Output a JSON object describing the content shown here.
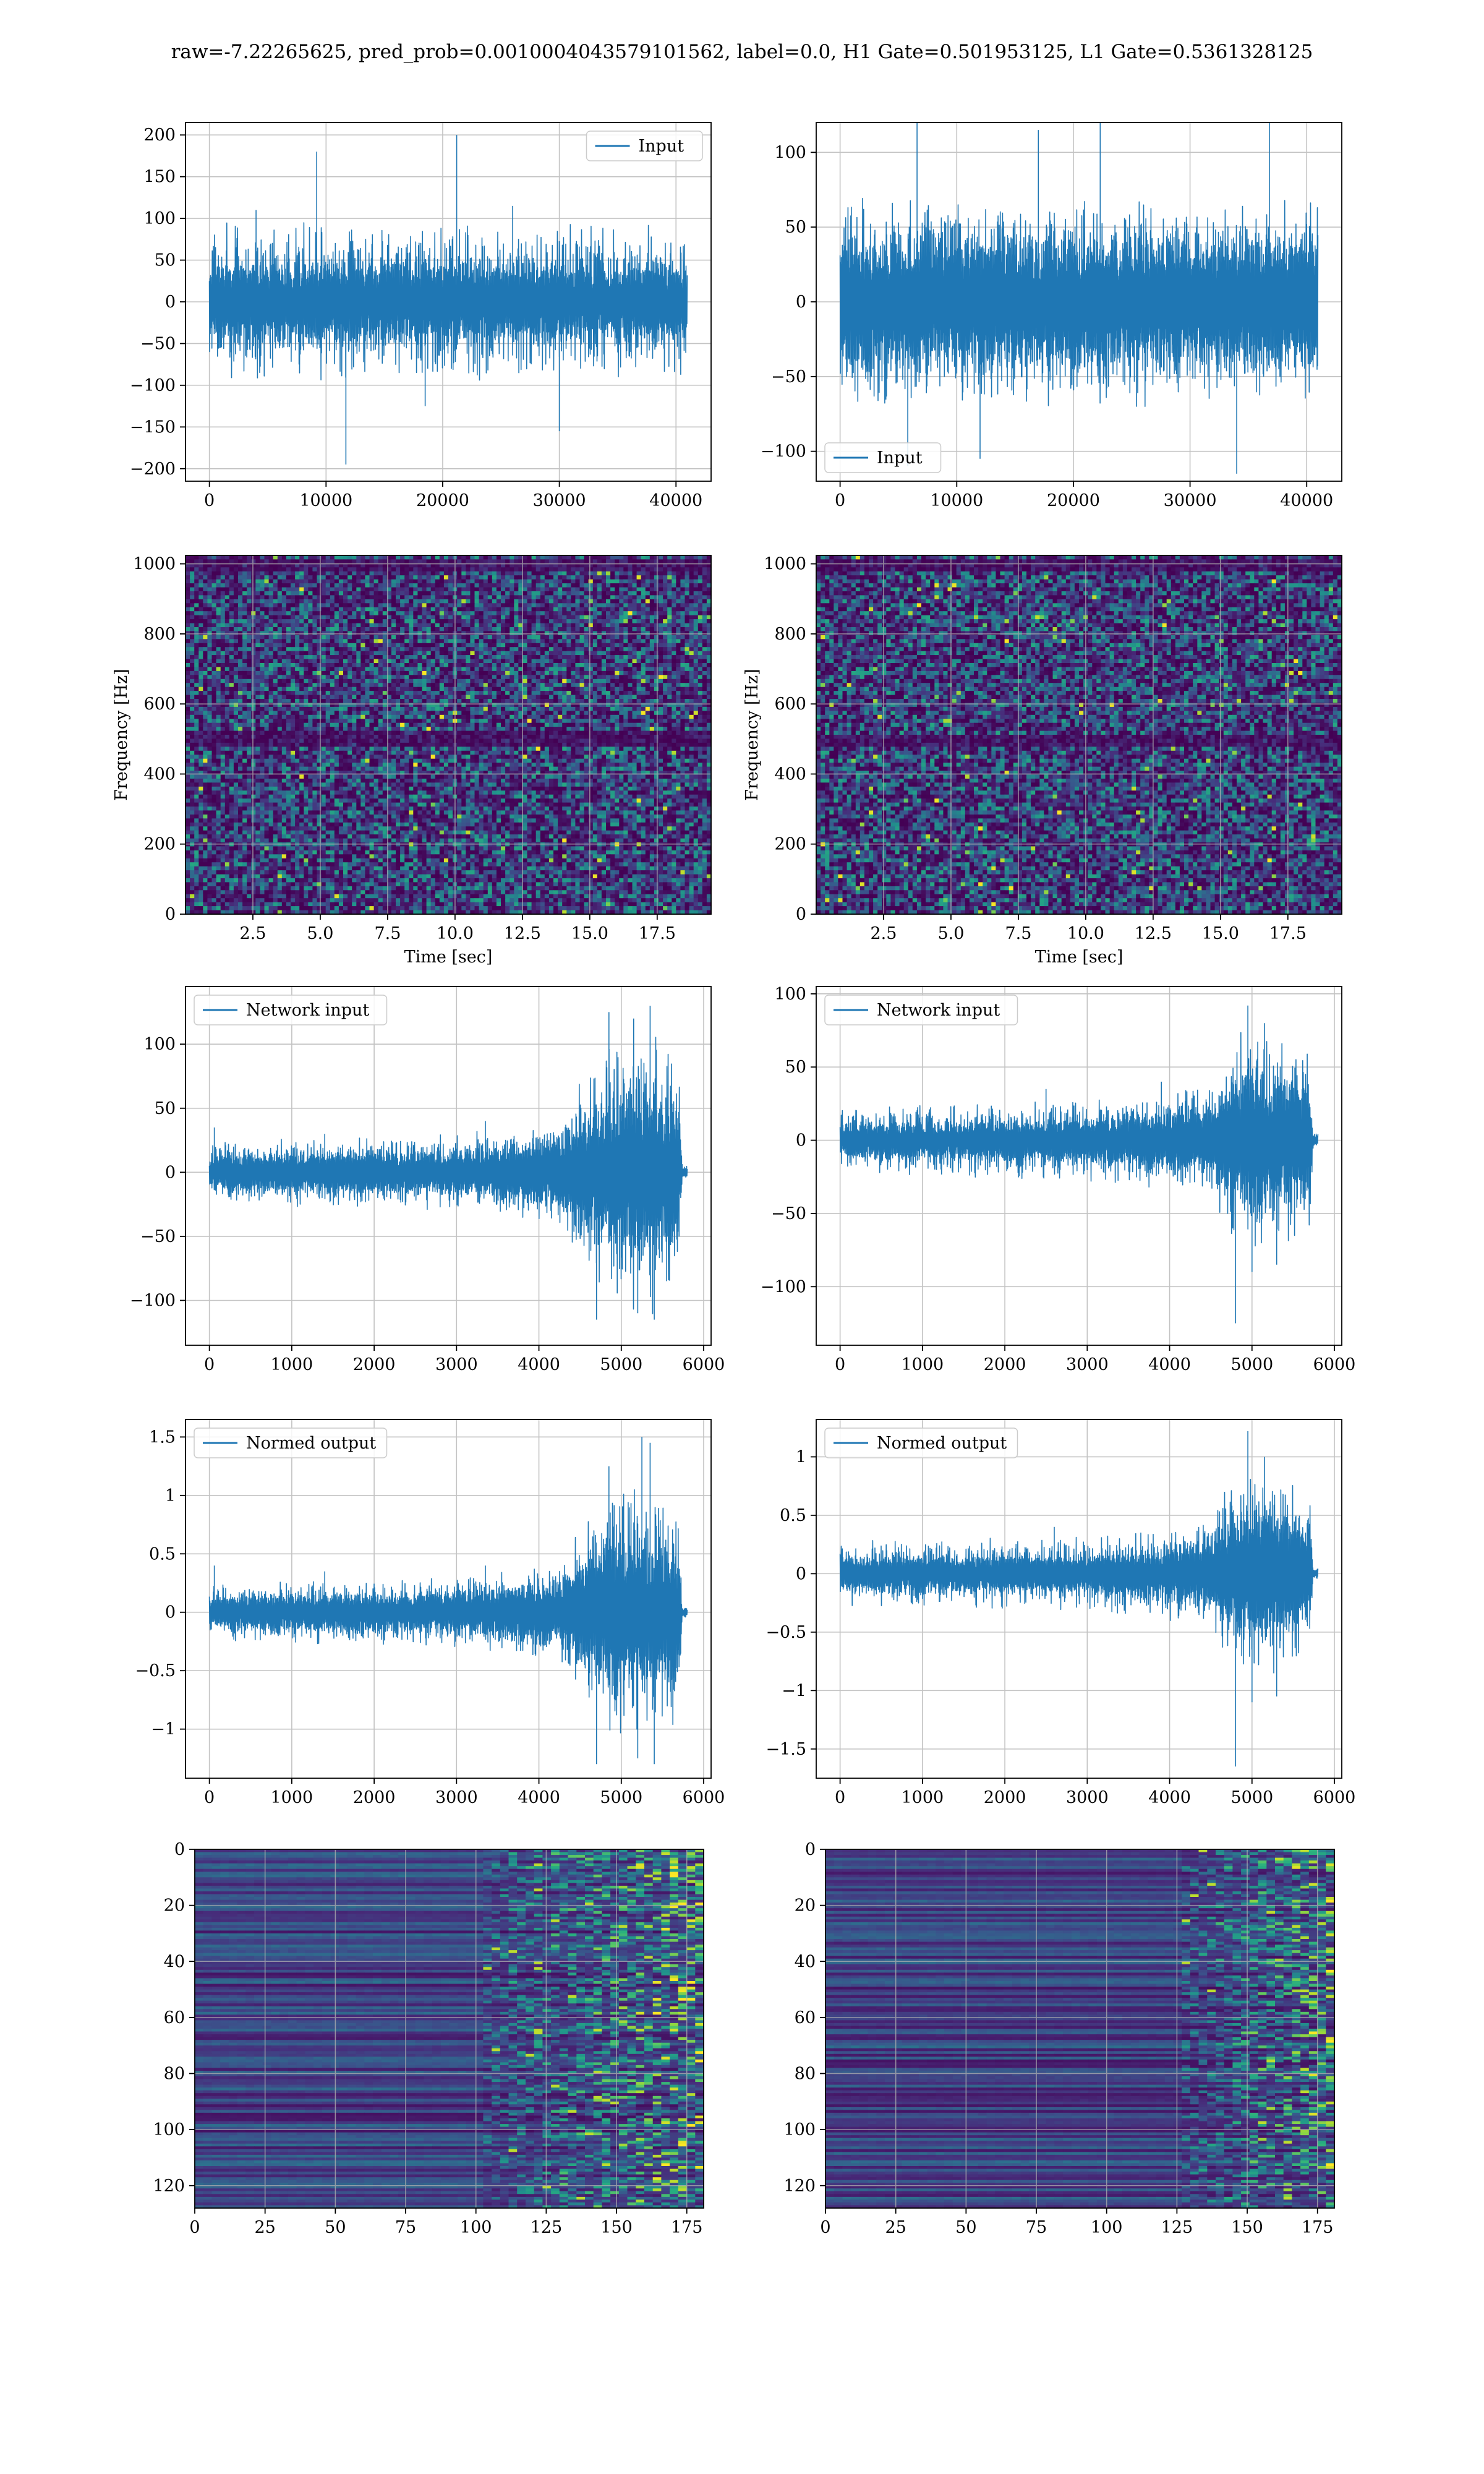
{
  "suptitle": "raw=-7.22265625, pred_prob=0.0010004043579101562, label=0.0, H1 Gate=0.501953125, L1 Gate=0.5361328125",
  "colors": {
    "line": "#1f77b4",
    "grid": "#b0b0b0",
    "viridis": [
      "#440154",
      "#472d7b",
      "#3b528b",
      "#2c728e",
      "#21918c",
      "#28ae80",
      "#5ec962",
      "#addc30",
      "#fde725"
    ]
  },
  "chart_data": [
    {
      "type": "line",
      "id": "h1-input",
      "legend": "Input",
      "legend_loc": "upper right",
      "grid": true,
      "xlim": [
        -2048,
        43008
      ],
      "ylim": [
        -215,
        215
      ],
      "xticks": [
        0,
        10000,
        20000,
        30000,
        40000
      ],
      "yticks": [
        -200,
        -150,
        -100,
        -50,
        0,
        50,
        100,
        150,
        200
      ],
      "x_range": [
        0,
        40960
      ],
      "envelope": [
        [
          0,
          40,
          95
        ],
        [
          40960,
          40,
          95
        ]
      ],
      "spikes": [
        [
          9200,
          180
        ],
        [
          21200,
          200
        ],
        [
          11700,
          -195
        ],
        [
          30000,
          -155
        ],
        [
          18500,
          -125
        ],
        [
          4000,
          110
        ],
        [
          26000,
          115
        ]
      ]
    },
    {
      "type": "line",
      "id": "l1-input",
      "legend": "Input",
      "legend_loc": "lower left",
      "grid": true,
      "xlim": [
        -2048,
        43008
      ],
      "ylim": [
        -120,
        120
      ],
      "xticks": [
        0,
        10000,
        20000,
        30000,
        40000
      ],
      "yticks": [
        -100,
        -50,
        0,
        50,
        100
      ],
      "x_range": [
        0,
        40960
      ],
      "envelope": [
        [
          0,
          40,
          70
        ],
        [
          40960,
          40,
          70
        ]
      ],
      "spikes": [
        [
          6600,
          120
        ],
        [
          22300,
          120
        ],
        [
          36800,
          120
        ],
        [
          17000,
          115
        ],
        [
          5800,
          -110
        ],
        [
          34000,
          -115
        ],
        [
          12000,
          -105
        ]
      ]
    },
    {
      "type": "heatmap",
      "id": "h1-spectrogram",
      "xlabel": "Time [sec]",
      "ylabel": "Frequency [Hz]",
      "grid": true,
      "xlim": [
        0.0,
        19.5
      ],
      "ylim": [
        0,
        1024
      ],
      "xticks": [
        "2.5",
        "5.0",
        "7.5",
        "10.0",
        "12.5",
        "15.0",
        "17.5"
      ],
      "yticks": [
        0,
        200,
        400,
        600,
        800,
        1000
      ],
      "dark_bands": [
        500,
        520,
        1000
      ]
    },
    {
      "type": "heatmap",
      "id": "l1-spectrogram",
      "xlabel": "Time [sec]",
      "ylabel": "Frequency [Hz]",
      "grid": true,
      "xlim": [
        0.0,
        19.5
      ],
      "ylim": [
        0,
        1024
      ],
      "xticks": [
        "2.5",
        "5.0",
        "7.5",
        "10.0",
        "12.5",
        "15.0",
        "17.5"
      ],
      "yticks": [
        0,
        200,
        400,
        600,
        800,
        1000
      ],
      "dark_bands": [
        500,
        1000
      ]
    },
    {
      "type": "line",
      "id": "h1-network-input",
      "legend": "Network input",
      "legend_loc": "upper left",
      "grid": true,
      "xlim": [
        -290,
        6090
      ],
      "ylim": [
        -135,
        145
      ],
      "xticks": [
        0,
        1000,
        2000,
        3000,
        4000,
        5000,
        6000
      ],
      "yticks": [
        -100,
        -50,
        0,
        50,
        100
      ],
      "x_range": [
        0,
        5800
      ],
      "envelope": [
        [
          0,
          12,
          25
        ],
        [
          3000,
          15,
          30
        ],
        [
          4200,
          25,
          40
        ],
        [
          4600,
          45,
          80
        ],
        [
          5000,
          60,
          120
        ],
        [
          5400,
          55,
          110
        ],
        [
          5700,
          50,
          100
        ],
        [
          5740,
          3,
          5
        ],
        [
          5800,
          3,
          5
        ]
      ],
      "spikes": [
        [
          60,
          35
        ],
        [
          1400,
          30
        ],
        [
          3350,
          40
        ],
        [
          4850,
          125
        ],
        [
          5150,
          120
        ],
        [
          5350,
          130
        ],
        [
          4700,
          -115
        ],
        [
          5200,
          -110
        ],
        [
          5400,
          -115
        ],
        [
          5550,
          -85
        ]
      ]
    },
    {
      "type": "line",
      "id": "l1-network-input",
      "legend": "Network input",
      "legend_loc": "upper left",
      "grid": true,
      "xlim": [
        -290,
        6090
      ],
      "ylim": [
        -140,
        105
      ],
      "xticks": [
        0,
        1000,
        2000,
        3000,
        4000,
        5000,
        6000
      ],
      "yticks": [
        -100,
        -50,
        0,
        50,
        100
      ],
      "x_range": [
        0,
        5800
      ],
      "envelope": [
        [
          0,
          10,
          22
        ],
        [
          3000,
          12,
          28
        ],
        [
          4500,
          20,
          40
        ],
        [
          4800,
          40,
          75
        ],
        [
          5000,
          45,
          80
        ],
        [
          5400,
          40,
          70
        ],
        [
          5700,
          35,
          65
        ],
        [
          5740,
          3,
          6
        ],
        [
          5800,
          3,
          6
        ]
      ],
      "spikes": [
        [
          4950,
          92
        ],
        [
          5150,
          80
        ],
        [
          4800,
          -125
        ],
        [
          5000,
          -90
        ],
        [
          5300,
          -85
        ],
        [
          2500,
          35
        ],
        [
          3900,
          40
        ]
      ]
    },
    {
      "type": "line",
      "id": "h1-normed-output",
      "legend": "Normed output",
      "legend_loc": "upper left",
      "grid": true,
      "xlim": [
        -290,
        6090
      ],
      "ylim": [
        -1.42,
        1.65
      ],
      "xticks": [
        0,
        1000,
        2000,
        3000,
        4000,
        5000,
        6000
      ],
      "yticks": [
        -1.0,
        -0.5,
        0.0,
        0.5,
        1.0,
        1.5
      ],
      "x_range": [
        0,
        5800
      ],
      "envelope": [
        [
          0,
          0.12,
          0.25
        ],
        [
          3000,
          0.15,
          0.3
        ],
        [
          4200,
          0.25,
          0.4
        ],
        [
          4600,
          0.45,
          0.8
        ],
        [
          5000,
          0.6,
          1.2
        ],
        [
          5400,
          0.55,
          1.1
        ],
        [
          5700,
          0.5,
          1.0
        ],
        [
          5740,
          0.03,
          0.05
        ],
        [
          5800,
          0.03,
          0.05
        ]
      ],
      "spikes": [
        [
          60,
          0.4
        ],
        [
          1400,
          0.35
        ],
        [
          3350,
          0.4
        ],
        [
          4850,
          1.25
        ],
        [
          5250,
          1.5
        ],
        [
          5350,
          1.45
        ],
        [
          4700,
          -1.3
        ],
        [
          5200,
          -1.25
        ],
        [
          5400,
          -1.3
        ]
      ]
    },
    {
      "type": "line",
      "id": "l1-normed-output",
      "legend": "Normed output",
      "legend_loc": "upper left",
      "grid": true,
      "xlim": [
        -290,
        6090
      ],
      "ylim": [
        -1.75,
        1.32
      ],
      "xticks": [
        0,
        1000,
        2000,
        3000,
        4000,
        5000,
        6000
      ],
      "yticks": [
        -1.5,
        -1.0,
        -0.5,
        0.0,
        0.5,
        1.0
      ],
      "x_range": [
        0,
        5800
      ],
      "envelope": [
        [
          0,
          0.12,
          0.28
        ],
        [
          3000,
          0.14,
          0.32
        ],
        [
          4500,
          0.22,
          0.45
        ],
        [
          4800,
          0.45,
          0.9
        ],
        [
          5000,
          0.5,
          1.0
        ],
        [
          5400,
          0.45,
          0.85
        ],
        [
          5700,
          0.4,
          0.8
        ],
        [
          5740,
          0.03,
          0.06
        ],
        [
          5800,
          0.03,
          0.06
        ]
      ],
      "spikes": [
        [
          4950,
          1.22
        ],
        [
          5150,
          1.0
        ],
        [
          4800,
          -1.65
        ],
        [
          5000,
          -1.1
        ],
        [
          5300,
          -1.05
        ],
        [
          2600,
          0.4
        ]
      ]
    },
    {
      "type": "heatmap",
      "id": "h1-feature-map",
      "grid": true,
      "xlim": [
        0,
        181
      ],
      "ylim": [
        128,
        0
      ],
      "xticks": [
        0,
        25,
        50,
        75,
        100,
        125,
        150,
        175
      ],
      "yticks": [
        0,
        20,
        40,
        60,
        80,
        100,
        120
      ],
      "onset_column": 100
    },
    {
      "type": "heatmap",
      "id": "l1-feature-map",
      "grid": true,
      "xlim": [
        0,
        181
      ],
      "ylim": [
        128,
        0
      ],
      "xticks": [
        0,
        25,
        50,
        75,
        100,
        125,
        150,
        175
      ],
      "yticks": [
        0,
        20,
        40,
        60,
        80,
        100,
        120
      ],
      "onset_column": 125
    }
  ]
}
